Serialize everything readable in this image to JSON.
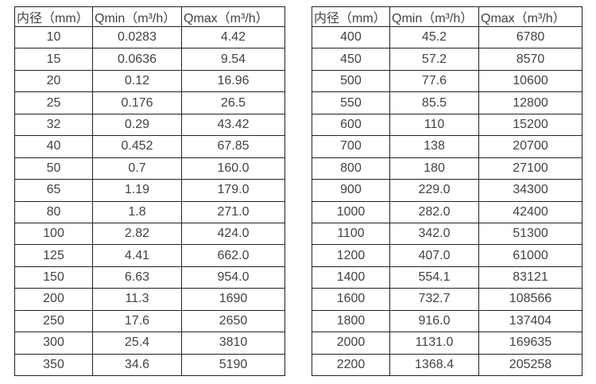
{
  "page": {
    "background": "#ffffff"
  },
  "colors": {
    "border": "#222222",
    "text": "#424242"
  },
  "tables": [
    {
      "name": "flow-rate-table-small-diameters",
      "headers": [
        "内径（mm）",
        "Qmin（m³/h）",
        "Qmax（m³/h）"
      ],
      "rows": [
        [
          "10",
          "0.0283",
          "4.42"
        ],
        [
          "15",
          "0.0636",
          "9.54"
        ],
        [
          "20",
          "0.12",
          "16.96"
        ],
        [
          "25",
          "0.176",
          "26.5"
        ],
        [
          "32",
          "0.29",
          "43.42"
        ],
        [
          "40",
          "0.452",
          "67.85"
        ],
        [
          "50",
          "0.7",
          "160.0"
        ],
        [
          "65",
          "1.19",
          "179.0"
        ],
        [
          "80",
          "1.8",
          "271.0"
        ],
        [
          "100",
          "2.82",
          "424.0"
        ],
        [
          "125",
          "4.41",
          "662.0"
        ],
        [
          "150",
          "6.63",
          "954.0"
        ],
        [
          "200",
          "11.3",
          "1690"
        ],
        [
          "250",
          "17.6",
          "2650"
        ],
        [
          "300",
          "25.4",
          "3810"
        ],
        [
          "350",
          "34.6",
          "5190"
        ]
      ]
    },
    {
      "name": "flow-rate-table-large-diameters",
      "headers": [
        "内径（mm）",
        "Qmin（m³/h）",
        "Qmax（m³/h）"
      ],
      "rows": [
        [
          "400",
          "45.2",
          "6780"
        ],
        [
          "450",
          "57.2",
          "8570"
        ],
        [
          "500",
          "77.6",
          "10600"
        ],
        [
          "550",
          "85.5",
          "12800"
        ],
        [
          "600",
          "110",
          "15200"
        ],
        [
          "700",
          "138",
          "20700"
        ],
        [
          "800",
          "180",
          "27100"
        ],
        [
          "900",
          "229.0",
          "34300"
        ],
        [
          "1000",
          "282.0",
          "42400"
        ],
        [
          "1100",
          "342.0",
          "51300"
        ],
        [
          "1200",
          "407.0",
          "61000"
        ],
        [
          "1400",
          "554.1",
          "83121"
        ],
        [
          "1600",
          "732.7",
          "108566"
        ],
        [
          "1800",
          "916.0",
          "137404"
        ],
        [
          "2000",
          "1131.0",
          "169635"
        ],
        [
          "2200",
          "1368.4",
          "205258"
        ]
      ]
    }
  ]
}
